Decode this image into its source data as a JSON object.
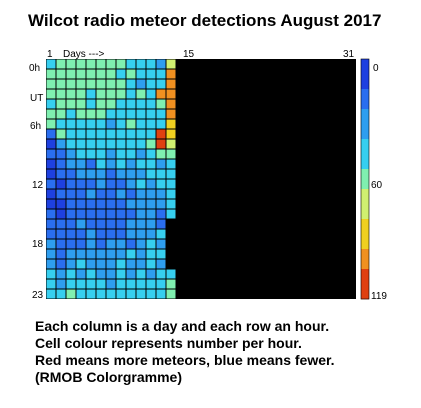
{
  "chart_data": {
    "type": "heatmap",
    "title": "Wilcot radio meteor detections  August 2017",
    "x_label": "Days --->",
    "x_ticks": [
      "1",
      "15",
      "31"
    ],
    "y_ticks": [
      "0h",
      "UT",
      "6h",
      "12",
      "18",
      "23"
    ],
    "days_total": 31,
    "hours_total": 24,
    "colorbar": {
      "min": 0,
      "max": 119,
      "ticks": [
        "0",
        "60",
        "119"
      ]
    },
    "missing_color": "#000000",
    "colors": [
      "#1e40e0",
      "#2a6ef0",
      "#2e9ef0",
      "#36cff0",
      "#7ff0b0",
      "#d0f070",
      "#f0d020",
      "#f09020",
      "#e04010"
    ],
    "counts": [
      [
        52,
        60,
        58,
        57,
        62,
        56,
        55,
        60,
        52,
        42,
        48,
        39,
        75
      ],
      [
        58,
        60,
        57,
        55,
        60,
        57,
        58,
        52,
        60,
        52,
        48,
        52,
        95
      ],
      [
        53,
        55,
        57,
        60,
        57,
        58,
        60,
        55,
        52,
        38,
        42,
        48,
        96
      ],
      [
        55,
        57,
        56,
        57,
        51,
        54,
        55,
        55,
        48,
        55,
        42,
        95,
        102
      ],
      [
        52,
        57,
        55,
        53,
        50,
        53,
        53,
        40,
        52,
        52,
        46,
        62,
        104
      ],
      [
        60,
        55,
        52,
        55,
        56,
        54,
        45,
        48,
        50,
        48,
        45,
        52,
        99
      ],
      [
        58,
        50,
        44,
        48,
        48,
        45,
        38,
        52,
        56,
        44,
        50,
        52,
        88
      ],
      [
        15,
        55,
        50,
        50,
        52,
        48,
        48,
        46,
        45,
        50,
        48,
        108,
        92
      ],
      [
        12,
        30,
        42,
        46,
        52,
        46,
        40,
        46,
        52,
        42,
        55,
        112,
        68
      ],
      [
        14,
        18,
        30,
        40,
        52,
        45,
        35,
        40,
        44,
        38,
        42,
        58,
        56
      ],
      [
        13,
        15,
        32,
        28,
        25,
        45,
        35,
        40,
        38,
        42,
        46,
        38,
        48
      ],
      [
        12,
        15,
        20,
        28,
        35,
        30,
        25,
        30,
        38,
        28,
        45,
        42,
        45
      ],
      [
        15,
        12,
        18,
        22,
        20,
        30,
        25,
        20,
        35,
        40,
        30,
        40,
        48
      ],
      [
        10,
        15,
        20,
        25,
        28,
        20,
        26,
        30,
        22,
        30,
        35,
        28,
        40
      ],
      [
        12,
        10,
        15,
        20,
        15,
        18,
        20,
        25,
        30,
        35,
        30,
        38,
        50
      ],
      [
        18,
        12,
        15,
        22,
        25,
        20,
        18,
        25,
        22,
        32,
        28,
        25,
        40
      ],
      [
        20,
        22,
        15,
        30,
        18,
        25,
        20,
        18,
        28,
        28,
        32,
        25,
        null
      ],
      [
        25,
        15,
        18,
        25,
        28,
        22,
        26,
        24,
        30,
        32,
        28,
        40,
        null
      ],
      [
        28,
        20,
        25,
        22,
        30,
        18,
        38,
        30,
        26,
        36,
        42,
        32,
        null
      ],
      [
        30,
        25,
        28,
        36,
        34,
        30,
        28,
        36,
        40,
        38,
        40,
        45,
        null
      ],
      [
        38,
        24,
        32,
        40,
        30,
        28,
        36,
        45,
        30,
        38,
        45,
        30,
        null
      ],
      [
        40,
        36,
        42,
        36,
        42,
        32,
        30,
        40,
        36,
        44,
        38,
        40,
        45
      ],
      [
        50,
        38,
        50,
        40,
        45,
        40,
        36,
        42,
        52,
        45,
        44,
        48,
        55
      ],
      [
        52,
        50,
        55,
        48,
        45,
        50,
        52,
        44,
        50,
        52,
        50,
        48,
        58
      ]
    ]
  },
  "caption": {
    "line1": "Each column is a day and each row an hour.",
    "line2": "Cell colour represents number per hour.",
    "line3": "Red means more meteors, blue means fewer.",
    "line4": "(RMOB Colorgramme)"
  }
}
